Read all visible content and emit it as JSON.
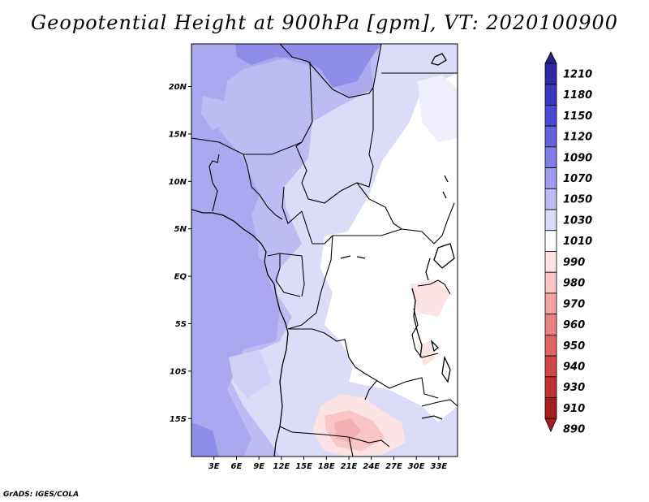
{
  "title": "Geopotential Height at 900hPa [gpm], VT: 2020100900",
  "credit": "GrADS: IGES/COLA",
  "map": {
    "lon_range": [
      0,
      35.5
    ],
    "lat_range": [
      -19,
      24.5
    ],
    "x_ticks": [
      {
        "lon": 3,
        "label": "3E"
      },
      {
        "lon": 6,
        "label": "6E"
      },
      {
        "lon": 9,
        "label": "9E"
      },
      {
        "lon": 12,
        "label": "12E"
      },
      {
        "lon": 15,
        "label": "15E"
      },
      {
        "lon": 18,
        "label": "18E"
      },
      {
        "lon": 21,
        "label": "21E"
      },
      {
        "lon": 24,
        "label": "24E"
      },
      {
        "lon": 27,
        "label": "27E"
      },
      {
        "lon": 30,
        "label": "30E"
      },
      {
        "lon": 33,
        "label": "33E"
      }
    ],
    "y_ticks": [
      {
        "lat": 20,
        "label": "20N"
      },
      {
        "lat": 15,
        "label": "15N"
      },
      {
        "lat": 10,
        "label": "10N"
      },
      {
        "lat": 5,
        "label": "5N"
      },
      {
        "lat": 0,
        "label": "EQ"
      },
      {
        "lat": -5,
        "label": "5S"
      },
      {
        "lat": -10,
        "label": "10S"
      },
      {
        "lat": -15,
        "label": "15S"
      }
    ]
  },
  "colorbar": {
    "levels": [
      {
        "label": "1210",
        "color": "#2a1f86"
      },
      {
        "label": "1180",
        "color": "#2e2aa6"
      },
      {
        "label": "1150",
        "color": "#3a38c0"
      },
      {
        "label": "1120",
        "color": "#4b4ad2"
      },
      {
        "label": "1090",
        "color": "#6462dd"
      },
      {
        "label": "1070",
        "color": "#7f7ee6"
      },
      {
        "label": "1050",
        "color": "#9d9ced"
      },
      {
        "label": "1030",
        "color": "#bcbbf3"
      },
      {
        "label": "1010",
        "color": "#dcdcf9"
      },
      {
        "label": "990",
        "color": "#ffffff"
      },
      {
        "label": "980",
        "color": "#fde3e3"
      },
      {
        "label": "970",
        "color": "#f9c5c5"
      },
      {
        "label": "960",
        "color": "#f2a3a3"
      },
      {
        "label": "950",
        "color": "#ea8282"
      },
      {
        "label": "940",
        "color": "#e06262"
      },
      {
        "label": "930",
        "color": "#d24747"
      },
      {
        "label": "910",
        "color": "#c13131"
      },
      {
        "label": "890",
        "color": "#a81e1e"
      }
    ]
  }
}
